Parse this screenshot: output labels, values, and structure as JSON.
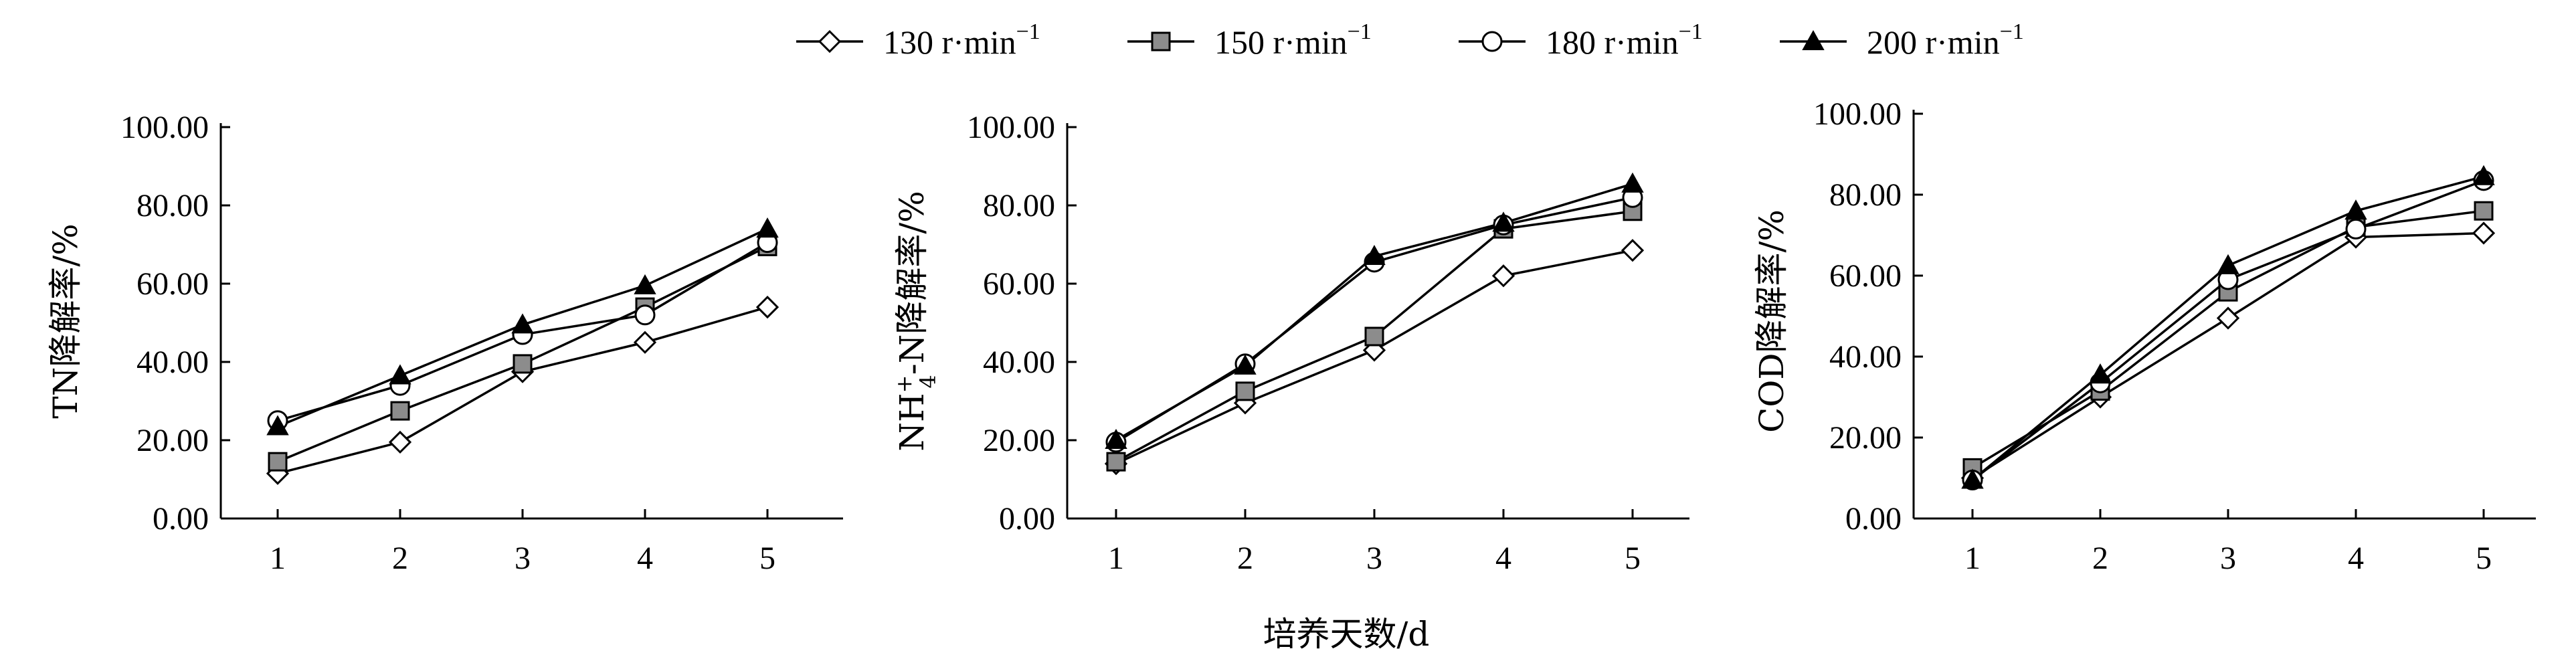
{
  "chart_data": [
    {
      "type": "line",
      "ylabel": "TN降解率/%",
      "x": [
        1,
        2,
        3,
        4,
        5
      ],
      "ylim": [
        0,
        100
      ],
      "yticks": [
        "0.00",
        "20.00",
        "40.00",
        "60.00",
        "80.00",
        "100.00"
      ],
      "xticks": [
        "1",
        "2",
        "3",
        "4",
        "5"
      ],
      "series": [
        {
          "name": "130 r·min⁻¹",
          "values": [
            11.5,
            19.5,
            37.5,
            45,
            54
          ]
        },
        {
          "name": "150 r·min⁻¹",
          "values": [
            14.5,
            27.5,
            39.5,
            54,
            69.5
          ]
        },
        {
          "name": "180 r·min⁻¹",
          "values": [
            25,
            34,
            47,
            52,
            70.5
          ]
        },
        {
          "name": "200 r·min⁻¹",
          "values": [
            23.5,
            36.5,
            49.5,
            59.5,
            74
          ]
        }
      ]
    },
    {
      "type": "line",
      "ylabel_parts": [
        "NH",
        "+",
        "4",
        "-N降解率/%"
      ],
      "x": [
        1,
        2,
        3,
        4,
        5
      ],
      "ylim": [
        0,
        100
      ],
      "yticks": [
        "0.00",
        "20.00",
        "40.00",
        "60.00",
        "80.00",
        "100.00"
      ],
      "xticks": [
        "1",
        "2",
        "3",
        "4",
        "5"
      ],
      "series": [
        {
          "name": "130 r·min⁻¹",
          "values": [
            14,
            29.5,
            43,
            62,
            68.5
          ]
        },
        {
          "name": "150 r·min⁻¹",
          "values": [
            14.5,
            32.5,
            46.5,
            74,
            78.5
          ]
        },
        {
          "name": "180 r·min⁻¹",
          "values": [
            19.5,
            39.5,
            65.5,
            75,
            82
          ]
        },
        {
          "name": "200 r·min⁻¹",
          "values": [
            20,
            39,
            67,
            75.5,
            85.5
          ]
        }
      ]
    },
    {
      "type": "line",
      "ylabel": "COD降解率/%",
      "x": [
        1,
        2,
        3,
        4,
        5
      ],
      "ylim": [
        0,
        100
      ],
      "yticks": [
        "0.00",
        "20.00",
        "40.00",
        "60.00",
        "80.00",
        "100.00"
      ],
      "xticks": [
        "1",
        "2",
        "3",
        "4",
        "5"
      ],
      "series": [
        {
          "name": "130 r·min⁻¹",
          "values": [
            10,
            30,
            49.5,
            69.5,
            70.5
          ]
        },
        {
          "name": "150 r·min⁻¹",
          "values": [
            12.5,
            31.5,
            56,
            72,
            76
          ]
        },
        {
          "name": "180 r·min⁻¹",
          "values": [
            9.5,
            33.5,
            59,
            71.5,
            83.5
          ]
        },
        {
          "name": "200 r·min⁻¹",
          "values": [
            9.5,
            35.5,
            62.5,
            76,
            84.5
          ]
        }
      ]
    }
  ],
  "legend": [
    {
      "marker": "open-diamond",
      "value": "130",
      "unit": "r·min",
      "exponent": "−1"
    },
    {
      "marker": "filled-square",
      "value": "150",
      "unit": "r·min",
      "exponent": "−1"
    },
    {
      "marker": "open-circle",
      "value": "180",
      "unit": "r·min",
      "exponent": "−1"
    },
    {
      "marker": "filled-triangle",
      "value": "200",
      "unit": "r·min",
      "exponent": "−1"
    }
  ],
  "xlabel": "培养天数/d",
  "colors": {
    "line": "#000000",
    "square_fill": "#8c8c8c",
    "triangle_fill": "#000000",
    "open_fill": "#ffffff"
  }
}
